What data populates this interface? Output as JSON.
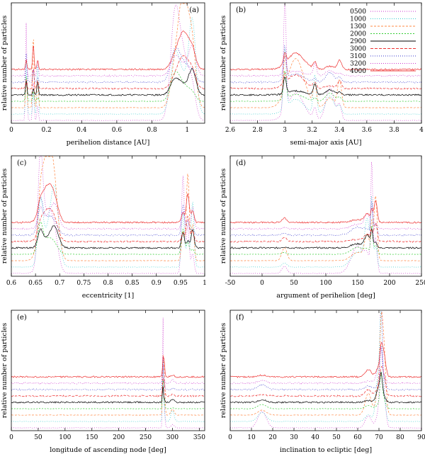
{
  "figure": {
    "ylabel_all": "relative number of particles"
  },
  "chart_data": [
    {
      "id": "a",
      "panel_label": "(a)",
      "type": "line",
      "title": "",
      "xlabel": "perihelion distance [AU]",
      "ylabel": "relative number of particles",
      "xlim": [
        0,
        1.1
      ],
      "xticks": [
        0,
        0.2,
        0.4,
        0.6,
        0.8,
        1
      ],
      "xtick_labels": [
        "0",
        "0.2",
        "0.4",
        "0.6",
        "0.8",
        "1"
      ],
      "grid": false,
      "features": [
        {
          "pos": 0.93,
          "width": 0.025,
          "amp": 0.9
        },
        {
          "pos": 0.98,
          "width": 0.03,
          "amp": 1.0
        },
        {
          "pos": 1.03,
          "width": 0.02,
          "amp": 0.8
        },
        {
          "pos": 0.085,
          "width": 0.004,
          "amp": 0.9
        },
        {
          "pos": 0.125,
          "width": 0.004,
          "amp": 0.7
        },
        {
          "pos": 0.15,
          "width": 0.004,
          "amp": 0.5
        }
      ]
    },
    {
      "id": "b",
      "panel_label": "(b)",
      "type": "line",
      "title": "",
      "xlabel": "semi-major axis [AU]",
      "ylabel": "relative number of particles",
      "xlim": [
        2.6,
        4.0
      ],
      "xticks": [
        2.6,
        2.8,
        3,
        3.2,
        3.4,
        3.6,
        3.8,
        4
      ],
      "xtick_labels": [
        "2.6",
        "2.8",
        "3",
        "3.2",
        "3.4",
        "3.6",
        "3.8",
        "4"
      ],
      "grid": false,
      "features": [
        {
          "pos": 3.0,
          "width": 0.01,
          "amp": 1.0
        },
        {
          "pos": 3.08,
          "width": 0.06,
          "amp": 0.45
        },
        {
          "pos": 3.22,
          "width": 0.012,
          "amp": 0.35
        },
        {
          "pos": 3.33,
          "width": 0.03,
          "amp": 0.3
        },
        {
          "pos": 3.4,
          "width": 0.015,
          "amp": 0.25
        }
      ],
      "legend_position": "top-right",
      "legend": [
        {
          "label": "0500",
          "color": "#cc33cc",
          "dash": "1,2"
        },
        {
          "label": "1000",
          "color": "#33cccc",
          "dash": "1,2"
        },
        {
          "label": "1300",
          "color": "#ff8844",
          "dash": "3,2"
        },
        {
          "label": "2000",
          "color": "#33cc33",
          "dash": "2,2"
        },
        {
          "label": "2900",
          "color": "#000000",
          "dash": ""
        },
        {
          "label": "3000",
          "color": "#ee3333",
          "dash": "4,2"
        },
        {
          "label": "3100",
          "color": "#3333cc",
          "dash": "1,2"
        },
        {
          "label": "3200",
          "color": "#cc33cc",
          "dash": "1,2"
        },
        {
          "label": "4000",
          "color": "#ee3333",
          "dash": ""
        }
      ]
    },
    {
      "id": "c",
      "panel_label": "(c)",
      "type": "line",
      "title": "",
      "xlabel": "eccentricity [1]",
      "ylabel": "relative number of particles",
      "xlim": [
        0.6,
        1.0
      ],
      "xticks": [
        0.6,
        0.65,
        0.7,
        0.75,
        0.8,
        0.85,
        0.9,
        0.95,
        1
      ],
      "xtick_labels": [
        "0.6",
        "0.65",
        "0.7",
        "0.75",
        "0.8",
        "0.85",
        "0.9",
        "0.95",
        "1"
      ],
      "grid": false,
      "features": [
        {
          "pos": 0.66,
          "width": 0.005,
          "amp": 0.9
        },
        {
          "pos": 0.675,
          "width": 0.012,
          "amp": 1.0
        },
        {
          "pos": 0.69,
          "width": 0.008,
          "amp": 0.6
        },
        {
          "pos": 0.955,
          "width": 0.003,
          "amp": 0.9
        },
        {
          "pos": 0.965,
          "width": 0.003,
          "amp": 0.8
        },
        {
          "pos": 0.975,
          "width": 0.003,
          "amp": 0.6
        }
      ]
    },
    {
      "id": "d",
      "panel_label": "(d)",
      "type": "line",
      "title": "",
      "xlabel": "argument of perihelion [deg]",
      "ylabel": "relative number of particles",
      "xlim": [
        -50,
        250
      ],
      "xticks": [
        -50,
        0,
        50,
        100,
        150,
        200,
        250
      ],
      "xtick_labels": [
        "-50",
        "0",
        "50",
        "100",
        "150",
        "200",
        "250"
      ],
      "grid": false,
      "features": [
        {
          "pos": 172,
          "width": 1.5,
          "amp": 1.0
        },
        {
          "pos": 178,
          "width": 2.5,
          "amp": 0.6
        },
        {
          "pos": 165,
          "width": 4,
          "amp": 0.4
        },
        {
          "pos": 150,
          "width": 10,
          "amp": 0.25
        },
        {
          "pos": 35,
          "width": 4,
          "amp": 0.12
        }
      ]
    },
    {
      "id": "e",
      "panel_label": "(e)",
      "type": "line",
      "title": "",
      "xlabel": "longitude of ascending node [deg]",
      "ylabel": "relative number of particles",
      "xlim": [
        0,
        360
      ],
      "xticks": [
        0,
        50,
        100,
        150,
        200,
        250,
        300,
        350
      ],
      "xtick_labels": [
        "0",
        "50",
        "100",
        "150",
        "200",
        "250",
        "300",
        "350"
      ],
      "grid": false,
      "features": [
        {
          "pos": 282,
          "width": 0.8,
          "amp": 1.0
        },
        {
          "pos": 284,
          "width": 1.5,
          "amp": 0.5
        },
        {
          "pos": 300,
          "width": 3,
          "amp": 0.1
        }
      ]
    },
    {
      "id": "f",
      "panel_label": "(f)",
      "type": "line",
      "title": "",
      "xlabel": "inclination to ecliptic [deg]",
      "ylabel": "relative number of particles",
      "xlim": [
        0,
        90
      ],
      "xticks": [
        0,
        10,
        20,
        30,
        40,
        50,
        60,
        70,
        80,
        90
      ],
      "xtick_labels": [
        "0",
        "10",
        "20",
        "30",
        "40",
        "50",
        "60",
        "70",
        "80",
        "90"
      ],
      "grid": false,
      "features": [
        {
          "pos": 71,
          "width": 0.5,
          "amp": 1.0
        },
        {
          "pos": 72,
          "width": 1.0,
          "amp": 0.7
        },
        {
          "pos": 70,
          "width": 1.2,
          "amp": 0.5
        },
        {
          "pos": 15,
          "width": 2,
          "amp": 0.15
        },
        {
          "pos": 65,
          "width": 1.5,
          "amp": 0.2
        }
      ]
    }
  ]
}
